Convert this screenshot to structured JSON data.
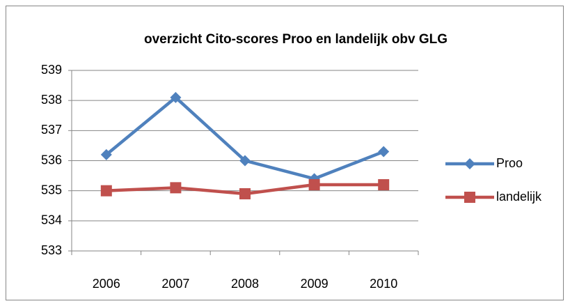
{
  "chart_data": {
    "type": "line",
    "title": "overzicht Cito-scores Proo en landelijk obv GLG",
    "categories": [
      "2006",
      "2007",
      "2008",
      "2009",
      "2010"
    ],
    "series": [
      {
        "name": "Proo",
        "color": "#4f81bd",
        "marker": "diamond",
        "values": [
          536.2,
          538.1,
          536.0,
          535.4,
          536.3
        ]
      },
      {
        "name": "landelijk",
        "color": "#c0504d",
        "marker": "square",
        "values": [
          535.0,
          535.1,
          534.9,
          535.2,
          535.2
        ]
      }
    ],
    "ylim": [
      533,
      539
    ],
    "yticks": [
      533,
      534,
      535,
      536,
      537,
      538,
      539
    ],
    "grid": true,
    "legend": "right"
  }
}
